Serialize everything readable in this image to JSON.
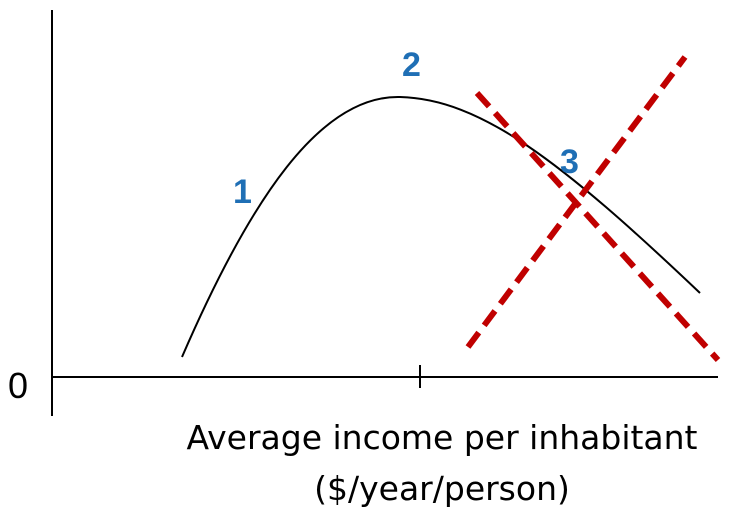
{
  "axis": {
    "origin_label": "0",
    "x_label_lines": [
      "Average income per inhabitant",
      "($/year/person)"
    ]
  },
  "stages": [
    "1",
    "2",
    "3"
  ]
}
